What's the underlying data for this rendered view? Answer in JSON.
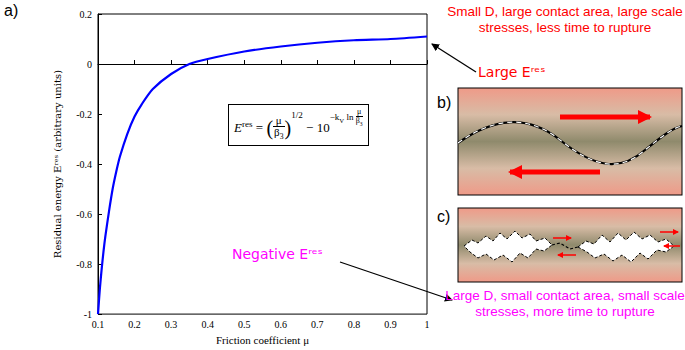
{
  "chart_data": {
    "type": "line",
    "x_label": "Friction coefficient μ",
    "y_label": "Residual energy Eʳᵉˢ (arbitrary units)",
    "x": [
      0.1,
      0.105,
      0.11,
      0.115,
      0.12,
      0.13,
      0.14,
      0.15,
      0.16,
      0.18,
      0.2,
      0.22,
      0.25,
      0.3,
      0.35,
      0.4,
      0.5,
      0.6,
      0.7,
      0.8,
      0.9,
      1.0
    ],
    "values": [
      -1.0,
      -0.9,
      -0.82,
      -0.75,
      -0.69,
      -0.59,
      -0.5,
      -0.43,
      -0.37,
      -0.28,
      -0.21,
      -0.16,
      -0.1,
      -0.04,
      0.0,
      0.02,
      0.05,
      0.07,
      0.085,
      0.095,
      0.1,
      0.11
    ],
    "color": "#0000ff",
    "xlim": [
      0.1,
      1
    ],
    "ylim": [
      -1,
      0.2
    ],
    "xticks": [
      0.1,
      0.2,
      0.3,
      0.4,
      0.5,
      0.6,
      0.7,
      0.8,
      0.9,
      1
    ],
    "yticks": [
      -1,
      -0.8,
      -0.6,
      -0.4,
      -0.2,
      0,
      0.2
    ],
    "grid": false,
    "annotations": [
      {
        "text": "Large Eʳᵉˢ",
        "color": "#ff0000"
      },
      {
        "text": "Negative Eʳᵉˢ",
        "color": "#ff00ff"
      }
    ]
  },
  "formula": {
    "lhs": "E",
    "lhs_sup": "res",
    "eq": "=",
    "num": "μ",
    "den": "β",
    "den_sub": "3",
    "power": "1/2",
    "minus": "−",
    "base": "10",
    "exp_k": "−k",
    "exp_k_sub": "V",
    "exp_ln": "ln"
  },
  "panels": [
    {
      "label": "a)"
    },
    {
      "label": "b)",
      "caption": "Small D, large contact area, large scale stresses, less time to rupture",
      "color": "#ff0000"
    },
    {
      "label": "c)",
      "caption": "Large D, small contact area, small scale stresses, more time to rupture",
      "color": "#ff00ff"
    }
  ]
}
